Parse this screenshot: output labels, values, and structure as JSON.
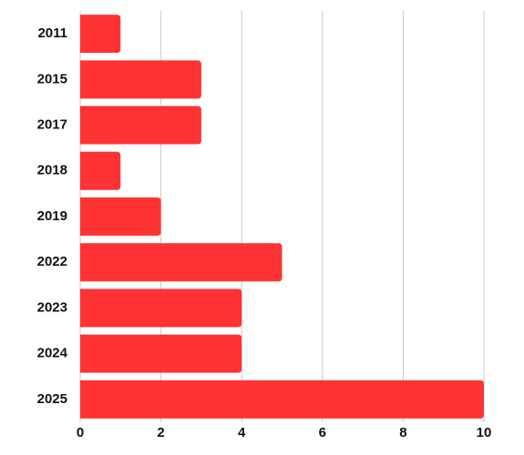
{
  "chart_data": {
    "type": "hbar",
    "categories": [
      "2011",
      "2015",
      "2017",
      "2018",
      "2019",
      "2022",
      "2023",
      "2024",
      "2025"
    ],
    "values": [
      1,
      3,
      3,
      1,
      2,
      5,
      4,
      4,
      10
    ],
    "color": "#ff3333",
    "xlim": [
      0,
      10
    ],
    "xticks": [
      0,
      2,
      4,
      6,
      8,
      10
    ],
    "grid": true
  }
}
